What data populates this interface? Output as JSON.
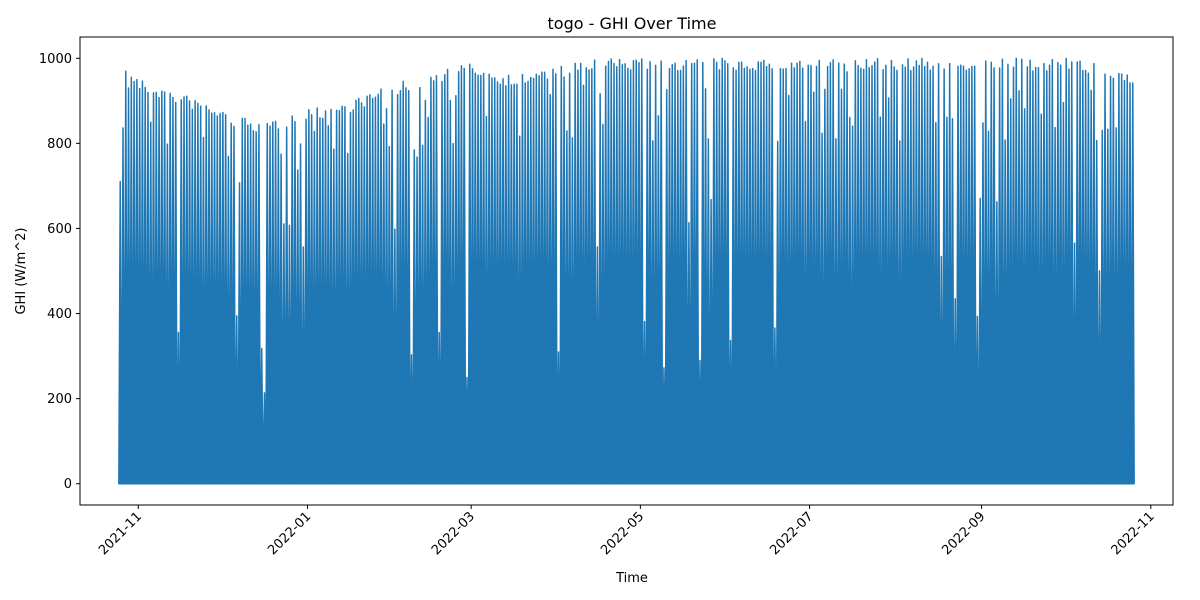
{
  "chart_data": {
    "type": "line",
    "title": "togo - GHI Over Time",
    "xlabel": "Time",
    "ylabel": "GHI (W/m^2)",
    "xlim": [
      "2021-10-11",
      "2022-11-09"
    ],
    "ylim": [
      -50,
      1050
    ],
    "x_start": "2021-10-25",
    "x_end": "2022-10-25",
    "x_ticks": [
      "2021-11-01",
      "2022-01-01",
      "2022-03-01",
      "2022-05-01",
      "2022-07-01",
      "2022-09-01",
      "2022-11-01"
    ],
    "x_tick_labels": [
      "2021-11",
      "2022-01",
      "2022-03",
      "2022-05",
      "2022-07",
      "2022-09",
      "2022-11"
    ],
    "y_ticks": [
      0,
      200,
      400,
      600,
      800,
      1000
    ],
    "y_tick_labels": [
      "0",
      "200",
      "400",
      "600",
      "800",
      "1000"
    ],
    "grid": false,
    "legend": "none",
    "series": [
      {
        "color": "#1f77b4",
        "daily_peak_envelope": {
          "dates": [
            "2021-10-25",
            "2021-11-01",
            "2021-11-15",
            "2021-12-01",
            "2021-12-15",
            "2022-01-01",
            "2022-01-15",
            "2022-02-01",
            "2022-02-15",
            "2022-03-01",
            "2022-03-15",
            "2022-04-01",
            "2022-04-15",
            "2022-05-01",
            "2022-06-01",
            "2022-07-01",
            "2022-08-01",
            "2022-09-01",
            "2022-10-01",
            "2022-10-25"
          ],
          "values": [
            1000,
            950,
            920,
            880,
            850,
            880,
            900,
            940,
            970,
            990,
            960,
            980,
            1000,
            1000,
            1000,
            1000,
            1000,
            1000,
            1000,
            970
          ]
        },
        "min_value": 0
      }
    ]
  }
}
